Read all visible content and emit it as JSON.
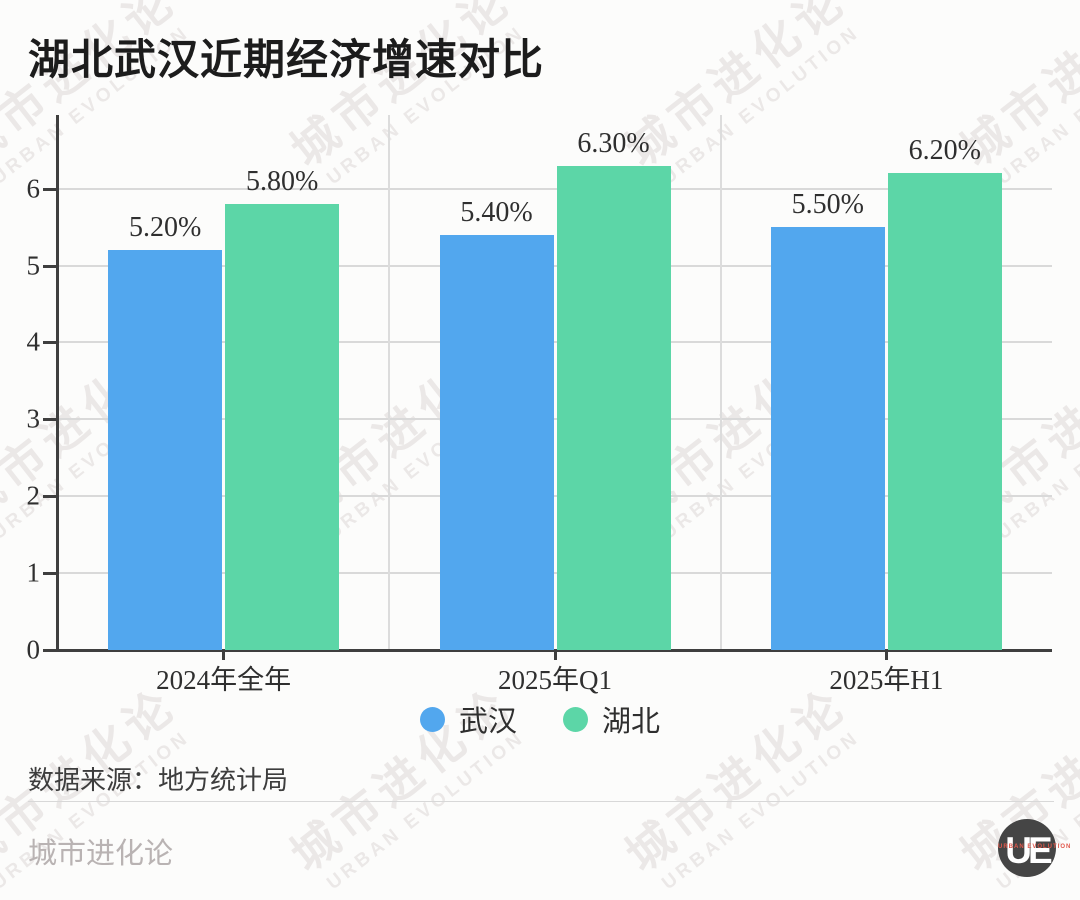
{
  "chart_data": {
    "type": "bar",
    "title": "湖北武汉近期经济增速对比",
    "categories": [
      "2024年全年",
      "2025年Q1",
      "2025年H1"
    ],
    "series": [
      {
        "name": "武汉",
        "color": "#52a7ee",
        "values": [
          5.2,
          5.4,
          5.5
        ],
        "labels": [
          "5.20%",
          "5.40%",
          "5.50%"
        ]
      },
      {
        "name": "湖北",
        "color": "#5cd6a7",
        "values": [
          5.8,
          6.3,
          6.2
        ],
        "labels": [
          "5.80%",
          "6.30%",
          "6.20%"
        ]
      }
    ],
    "ylim": [
      0,
      6.95
    ],
    "yticks": [
      0,
      1,
      2,
      3,
      4,
      5,
      6
    ],
    "grid": true,
    "legend_position": "bottom"
  },
  "footer": {
    "source": "数据来源：地方统计局",
    "brand": "城市进化论",
    "logo_text": "UE",
    "logo_subtext": "URBAN EVOLUTION"
  },
  "watermark": {
    "line1": "城市进化论",
    "line2": "URBAN EVOLUTION"
  }
}
